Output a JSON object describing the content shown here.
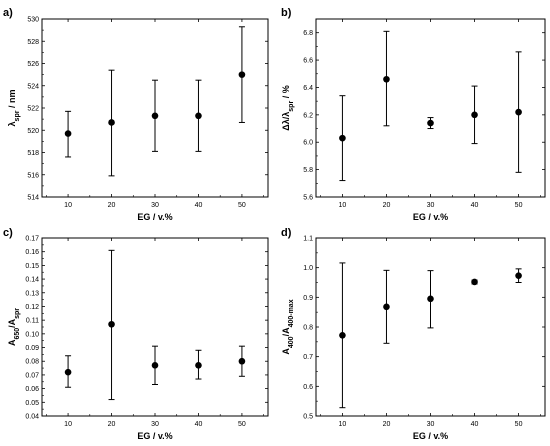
{
  "chart_data": [
    {
      "panel_label": "a)",
      "type": "scatter",
      "xlabel": "EG / v.%",
      "ylabel_main": "λ",
      "ylabel_sub": "spr",
      "ylabel_tail": " / nm",
      "xticks": [
        10,
        20,
        30,
        40,
        50
      ],
      "xlim": [
        4,
        56
      ],
      "ylim": [
        514,
        530
      ],
      "yticks": [
        "514",
        "516",
        "518",
        "520",
        "522",
        "524",
        "526",
        "528",
        "530"
      ],
      "x": [
        10,
        20,
        30,
        40,
        50
      ],
      "y": [
        519.7,
        520.7,
        521.3,
        521.3,
        525.0
      ],
      "err_low": [
        517.6,
        515.9,
        518.1,
        518.1,
        520.7
      ],
      "err_high": [
        521.7,
        525.4,
        524.5,
        524.5,
        529.3
      ]
    },
    {
      "panel_label": "b)",
      "type": "scatter",
      "xlabel": "EG / v.%",
      "ylabel_main": "Δλ/λ",
      "ylabel_sub": "spr",
      "ylabel_tail": " / %",
      "xticks": [
        10,
        20,
        30,
        40,
        50
      ],
      "xlim": [
        4,
        56
      ],
      "ylim": [
        5.6,
        6.9
      ],
      "yticks": [
        "5.6",
        "5.8",
        "6.0",
        "6.2",
        "6.4",
        "6.6",
        "6.8"
      ],
      "x": [
        10,
        20,
        30,
        40,
        50
      ],
      "y": [
        6.03,
        6.46,
        6.14,
        6.2,
        6.22
      ],
      "err_low": [
        5.72,
        6.12,
        6.1,
        5.99,
        5.78
      ],
      "err_high": [
        6.34,
        6.81,
        6.18,
        6.41,
        6.66
      ]
    },
    {
      "panel_label": "c)",
      "type": "scatter",
      "xlabel": "EG / v.%",
      "ylabel_main": "A",
      "ylabel_sub": "650",
      "ylabel_mid": "/A",
      "ylabel_sub2": "spr",
      "xticks": [
        10,
        20,
        30,
        40,
        50
      ],
      "xlim": [
        4,
        56
      ],
      "ylim": [
        0.04,
        0.17
      ],
      "yticks": [
        "0.04",
        "0.05",
        "0.06",
        "0.07",
        "0.08",
        "0.09",
        "0.10",
        "0.11",
        "0.12",
        "0.13",
        "0.14",
        "0.15",
        "0.16",
        "0.17"
      ],
      "x": [
        10,
        20,
        30,
        40,
        50
      ],
      "y": [
        0.072,
        0.107,
        0.077,
        0.077,
        0.08
      ],
      "err_low": [
        0.061,
        0.052,
        0.063,
        0.067,
        0.069
      ],
      "err_high": [
        0.084,
        0.161,
        0.091,
        0.088,
        0.091
      ]
    },
    {
      "panel_label": "d)",
      "type": "scatter",
      "xlabel": "EG / v.%",
      "ylabel_main": "A",
      "ylabel_sub": "400",
      "ylabel_mid": "/A",
      "ylabel_sub2": "400-max",
      "xticks": [
        10,
        20,
        30,
        40,
        50
      ],
      "xlim": [
        4,
        56
      ],
      "ylim": [
        0.5,
        1.1
      ],
      "yticks": [
        "0.5",
        "0.6",
        "0.7",
        "0.8",
        "0.9",
        "1.0",
        "1.1"
      ],
      "x": [
        10,
        20,
        30,
        40,
        50
      ],
      "y": [
        0.772,
        0.868,
        0.895,
        0.952,
        0.973
      ],
      "err_low": [
        0.528,
        0.745,
        0.797,
        0.945,
        0.95
      ],
      "err_high": [
        1.016,
        0.991,
        0.99,
        0.958,
        0.996
      ]
    }
  ]
}
